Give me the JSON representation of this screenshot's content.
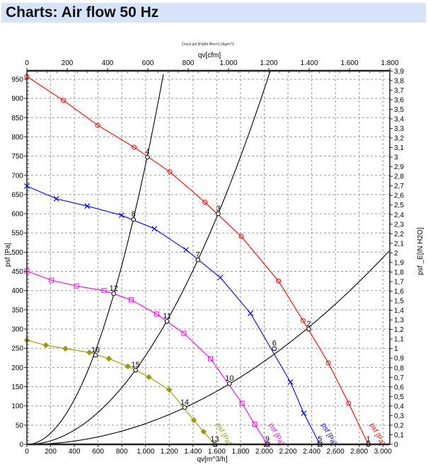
{
  "header": {
    "title": "Charts: Air flow 50 Hz"
  },
  "chart_data": {
    "type": "line",
    "title": "Druck psf  [Pa]für Rho=1,2kg/m^3",
    "xlabel": "qv[m^3/h]",
    "x2label": "qv[cfm]",
    "ylabel": "psf  [Pa]",
    "y2label": "psf _E[IN H2O]",
    "xlim": [
      0,
      3058
    ],
    "ylim": [
      0,
      972
    ],
    "x_ticks": [
      0,
      200,
      400,
      600,
      800,
      1000,
      1200,
      1400,
      1600,
      1800,
      2000,
      2200,
      2400,
      2600,
      2800,
      3000
    ],
    "x_tick_labels": [
      "0",
      "200",
      "400",
      "600",
      "800",
      "1.000",
      "1.200",
      "1.400",
      "1.600",
      "1.800",
      "2.000",
      "2.200",
      "2.400",
      "2.600",
      "2.800",
      "3.000"
    ],
    "x2_ticks": [
      0,
      200,
      400,
      600,
      800,
      1000,
      1200,
      1400,
      1600,
      1800
    ],
    "x2_tick_labels": [
      "0",
      "200",
      "400",
      "600",
      "800",
      "1.000",
      "1.200",
      "1.400",
      "1.600",
      "1.800"
    ],
    "y_ticks": [
      0,
      50,
      100,
      150,
      200,
      250,
      300,
      350,
      400,
      450,
      500,
      550,
      600,
      650,
      700,
      750,
      800,
      850,
      900,
      950
    ],
    "y_tick_labels": [
      "0",
      "50",
      "100",
      "150",
      "200",
      "250",
      "300",
      "350",
      "400",
      "450",
      "500",
      "550",
      "600",
      "650",
      "700",
      "750",
      "800",
      "850",
      "900",
      "950"
    ],
    "y2_tick_labels": [
      "0",
      "0,1",
      "0,2",
      "0,3",
      "0,4",
      "0,5",
      "0,6",
      "0,7",
      "0,8",
      "0,9",
      "1",
      "1,1",
      "1,2",
      "1,3",
      "1,4",
      "1,5",
      "1,6",
      "1,7",
      "1,8",
      "1,9",
      "2",
      "2,1",
      "2,2",
      "2,3",
      "2,4",
      "2,5",
      "2,6",
      "2,7",
      "2,8",
      "2,9",
      "3",
      "3,1",
      "3,2",
      "3,3",
      "3,4",
      "3,5",
      "3,6",
      "3,7",
      "3,8",
      "3,9"
    ],
    "grid": true,
    "series": [
      {
        "name": "psf [Pa]",
        "color": "#ff0000",
        "marker": "circle",
        "x": [
          0,
          307,
          597,
          904,
          1205,
          1500,
          1807,
          2120,
          2327,
          2540,
          2711,
          2877
        ],
        "y": [
          957,
          895,
          830,
          773,
          709,
          630,
          541,
          425,
          322,
          212,
          107,
          0
        ]
      },
      {
        "name": "psf [Pa]",
        "color": "#0000ff",
        "marker": "x",
        "x": [
          0,
          248,
          508,
          797,
          1075,
          1341,
          1630,
          1884,
          2221,
          2333,
          2469
        ],
        "y": [
          672,
          639,
          620,
          596,
          561,
          506,
          434,
          341,
          162,
          81,
          0
        ]
      },
      {
        "name": "psf [Pa]",
        "color": "#ff00ff",
        "marker": "square",
        "x": [
          0,
          207,
          419,
          650,
          880,
          1093,
          1323,
          1548,
          1813,
          1920,
          2026
        ],
        "y": [
          451,
          427,
          412,
          400,
          376,
          339,
          289,
          223,
          107,
          52,
          0
        ]
      },
      {
        "name": "psf [Pa]",
        "color": "#999900",
        "marker": "diamond",
        "x": [
          0,
          160,
          325,
          526,
          691,
          851,
          1028,
          1199,
          1406,
          1489,
          1583
        ],
        "y": [
          271,
          258,
          249,
          239,
          223,
          203,
          175,
          142,
          63,
          33,
          0
        ]
      }
    ],
    "system_curves": [
      {
        "k": 0.000728,
        "color": "#000000"
      },
      {
        "k": 0.000231,
        "color": "#000000"
      },
      {
        "k": 5.4e-05,
        "color": "#000000"
      }
    ],
    "operating_points": [
      {
        "label": "1",
        "x": 2877,
        "y": 0
      },
      {
        "label": "2",
        "x": 2375,
        "y": 300
      },
      {
        "label": "3",
        "x": 1612,
        "y": 600
      },
      {
        "label": "4",
        "x": 1016,
        "y": 747
      },
      {
        "label": "5",
        "x": 2469,
        "y": 0
      },
      {
        "label": "6",
        "x": 2085,
        "y": 249
      },
      {
        "label": "7",
        "x": 1441,
        "y": 480
      },
      {
        "label": "8",
        "x": 898,
        "y": 585
      },
      {
        "label": "9",
        "x": 2026,
        "y": 0
      },
      {
        "label": "10",
        "x": 1707,
        "y": 158
      },
      {
        "label": "11",
        "x": 1181,
        "y": 320
      },
      {
        "label": "12",
        "x": 732,
        "y": 392
      },
      {
        "label": "13",
        "x": 1583,
        "y": 0
      },
      {
        "label": "14",
        "x": 1329,
        "y": 96
      },
      {
        "label": "15",
        "x": 916,
        "y": 193
      },
      {
        "label": "16",
        "x": 579,
        "y": 232
      }
    ]
  }
}
